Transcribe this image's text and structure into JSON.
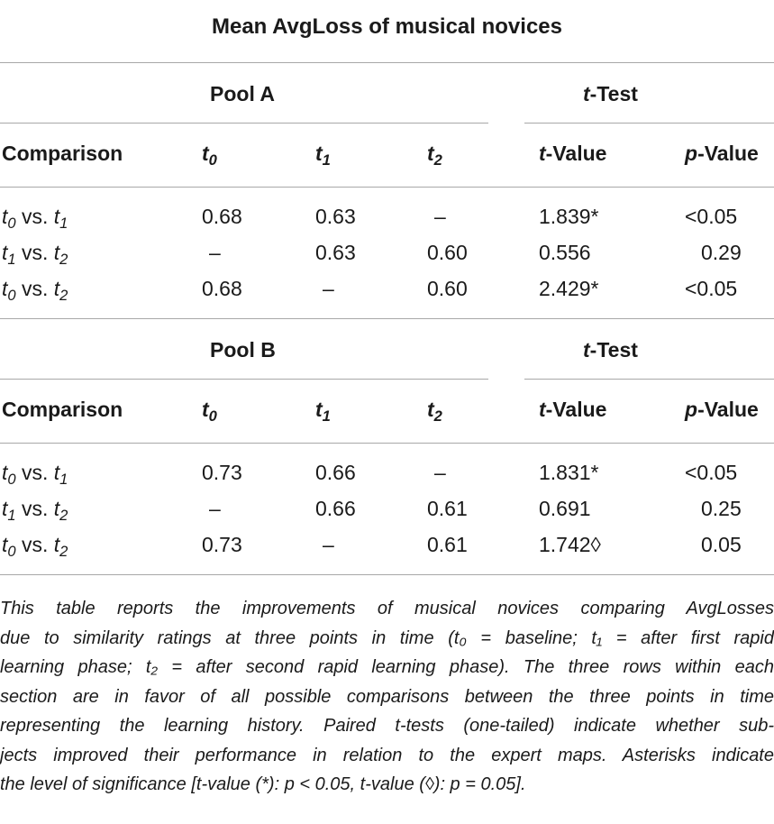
{
  "table": {
    "title": "Mean AvgLoss of musical novices",
    "columns": {
      "comparison": "Comparison",
      "t0": "0",
      "t1": "1",
      "t2": "2",
      "t_value": "-Value",
      "p_value": "-Value",
      "t_letter": "t",
      "p_letter": "p"
    },
    "sections": [
      {
        "pool_label": "Pool A",
        "test_label": "-Test",
        "rows": [
          {
            "a": "0",
            "b": "1",
            "t0": "0.68",
            "t1": "0.63",
            "t2": "–",
            "t_value": "1.839*",
            "p_value": "<0.05"
          },
          {
            "a": "1",
            "b": "2",
            "t0": "–",
            "t1": "0.63",
            "t2": "0.60",
            "t_value": "0.556",
            "p_value": "0.29"
          },
          {
            "a": "0",
            "b": "2",
            "t0": "0.68",
            "t1": "–",
            "t2": "0.60",
            "t_value": "2.429*",
            "p_value": "<0.05"
          }
        ]
      },
      {
        "pool_label": "Pool B",
        "test_label": "-Test",
        "rows": [
          {
            "a": "0",
            "b": "1",
            "t0": "0.73",
            "t1": "0.66",
            "t2": "–",
            "t_value": "1.831*",
            "p_value": "<0.05"
          },
          {
            "a": "1",
            "b": "2",
            "t0": "–",
            "t1": "0.66",
            "t2": "0.61",
            "t_value": "0.691",
            "p_value": "0.25"
          },
          {
            "a": "0",
            "b": "2",
            "t0": "0.73",
            "t1": "–",
            "t2": "0.61",
            "t_value": "1.742◊",
            "p_value": "0.05"
          }
        ]
      }
    ],
    "vs": "vs.",
    "caption_lines": [
      "This table reports the improvements of musical novices comparing AvgLosses",
      "due to similarity ratings at three points in time (t₀ = baseline; t₁ = after first rapid",
      "learning phase; t₂ = after second rapid learning phase). The three rows within each",
      "section are in favor of all possible comparisons between the three points in time",
      "representing the learning history. Paired t-tests (one-tailed) indicate whether sub-",
      "jects improved their performance in relation to the expert maps. Asterisks indicate",
      "the level of significance [t-value (*): p < 0.05, t-value (◊): p = 0.05]."
    ]
  }
}
